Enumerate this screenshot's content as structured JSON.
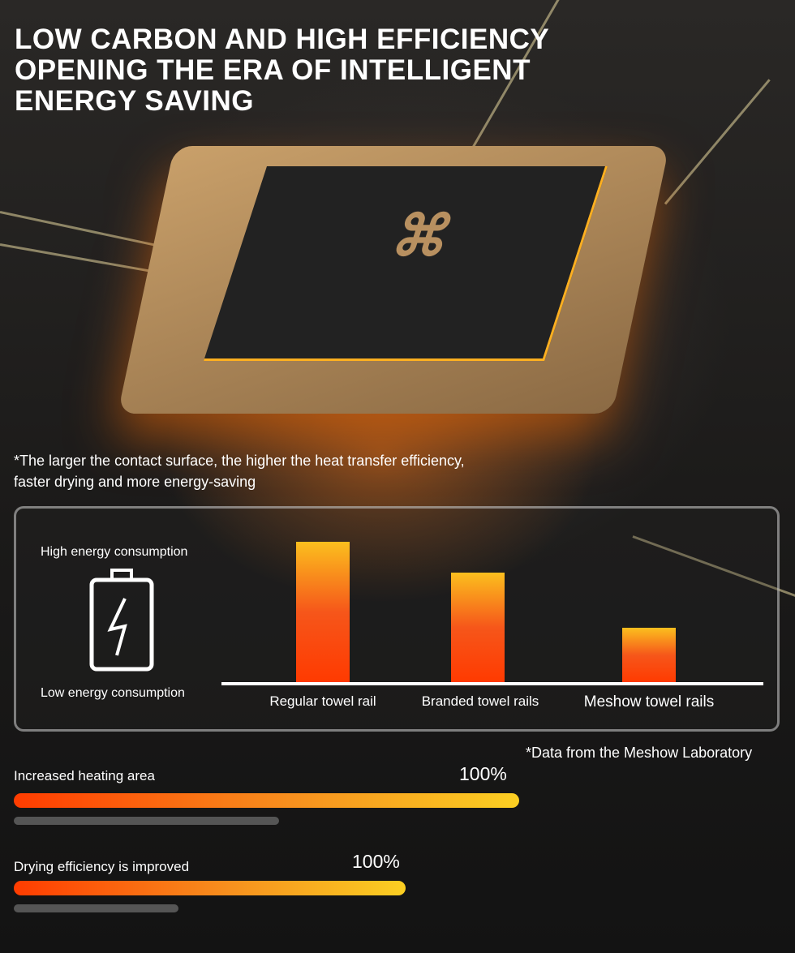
{
  "headline": "LOW CARBON AND HIGH EFFICIENCY OPENING THE ERA OF INTELLIGENT ENERGY SAVING",
  "note_contact": "*The larger the contact surface, the higher the heat transfer efficiency, faster drying and more energy-saving",
  "chip_logo": "MS",
  "colors": {
    "bar_top": "#fbbf1e",
    "bar_bottom": "#ff3a00",
    "progress_start": "#ff3c00",
    "progress_end": "#fbcf22",
    "track": "#555555"
  },
  "icons": {
    "battery": "battery-lightning-icon"
  },
  "chart_data": {
    "type": "bar",
    "title": "",
    "xlabel": "",
    "ylabel_high": "High energy consumption",
    "ylabel_low": "Low energy consumption",
    "categories": [
      "Regular towel rail",
      "Branded towel rails",
      "Meshow towel rails"
    ],
    "values": [
      100,
      78,
      39
    ],
    "ylim": [
      0,
      100
    ],
    "grid": false
  },
  "source_note": "*Data from the Meshow Laboratory",
  "progress": [
    {
      "label": "Increased heating area",
      "value_label": "100%",
      "fill": 1.0,
      "baseline_fill": 0.525
    },
    {
      "label": "Drying efficiency is improved",
      "value_label": "100%",
      "fill": 1.0,
      "baseline_fill": 0.42
    }
  ]
}
